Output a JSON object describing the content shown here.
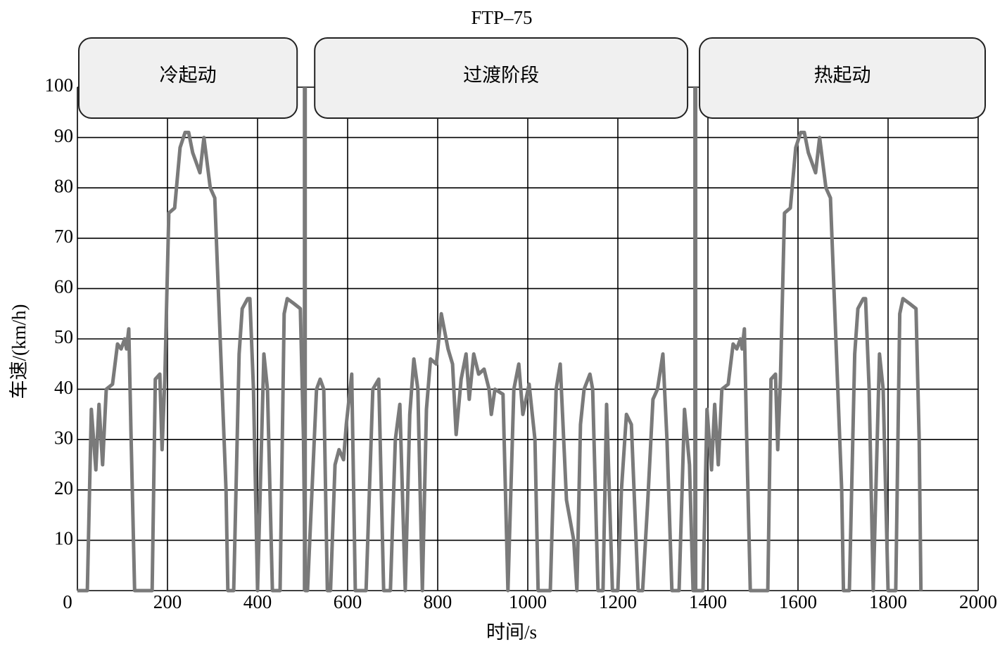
{
  "chart_data": {
    "type": "line",
    "title": "FTP–75",
    "x_label": "时间/s",
    "y_label": "车速/(km/h)",
    "color": "#7a7a7a",
    "grid": true,
    "xlim": [
      0,
      2000
    ],
    "xticks": [
      0,
      200,
      400,
      600,
      800,
      1000,
      1200,
      1400,
      1600,
      1800,
      2000
    ],
    "ylim": [
      0,
      100
    ],
    "yticks": [
      10,
      20,
      30,
      40,
      50,
      60,
      70,
      80,
      90,
      100
    ],
    "phases": [
      "冷起动",
      "过渡阶段",
      "热起动"
    ],
    "phase_boundaries": [
      505,
      1372
    ],
    "x": [
      0,
      22,
      31,
      41,
      48,
      56,
      64,
      78,
      89,
      97,
      105,
      109,
      114,
      119,
      127,
      166,
      173,
      183,
      188,
      194,
      203,
      216,
      228,
      239,
      247,
      256,
      272,
      281,
      295,
      305,
      317,
      330,
      334,
      347,
      359,
      366,
      378,
      383,
      391,
      400,
      414,
      422,
      433,
      450,
      459,
      466,
      481,
      495,
      502,
      506,
      511,
      531,
      539,
      547,
      555,
      562,
      572,
      581,
      591,
      597,
      609,
      617,
      641,
      656,
      669,
      680,
      695,
      706,
      716,
      728,
      738,
      747,
      756,
      766,
      775,
      784,
      797,
      808,
      823,
      833,
      841,
      852,
      863,
      870,
      880,
      891,
      903,
      914,
      919,
      927,
      945,
      956,
      969,
      980,
      989,
      1003,
      1016,
      1023,
      1050,
      1063,
      1072,
      1086,
      1102,
      1109,
      1117,
      1125,
      1138,
      1144,
      1156,
      1167,
      1175,
      1188,
      1200,
      1208,
      1219,
      1230,
      1245,
      1255,
      1266,
      1278,
      1288,
      1300,
      1309,
      1320,
      1336,
      1348,
      1359,
      1367,
      1372,
      1389,
      1398,
      1408,
      1415,
      1423,
      1431,
      1445,
      1456,
      1464,
      1472,
      1476,
      1481,
      1486,
      1494,
      1533,
      1540,
      1550,
      1555,
      1561,
      1570,
      1583,
      1595,
      1606,
      1614,
      1623,
      1639,
      1648,
      1662,
      1672,
      1684,
      1697,
      1701,
      1714,
      1726,
      1733,
      1745,
      1750,
      1758,
      1767,
      1781,
      1789,
      1800,
      1817,
      1826,
      1833,
      1848,
      1862,
      1869,
      1873
    ],
    "values": [
      0,
      0,
      36,
      24,
      37,
      25,
      40,
      41,
      49,
      48,
      50,
      48,
      52,
      31,
      0,
      0,
      42,
      43,
      28,
      42,
      75,
      76,
      88,
      91,
      91,
      87,
      83,
      90,
      80,
      78,
      50,
      20,
      0,
      0,
      47,
      56,
      58,
      58,
      40,
      0,
      47,
      40,
      0,
      0,
      55,
      58,
      57,
      56,
      30,
      0,
      0,
      40,
      42,
      40,
      0,
      0,
      25,
      28,
      26,
      33,
      43,
      0,
      0,
      40,
      42,
      0,
      0,
      30,
      37,
      0,
      35,
      46,
      40,
      0,
      36,
      46,
      45,
      55,
      48,
      45,
      31,
      42,
      47,
      38,
      47,
      43,
      44,
      40,
      35,
      40,
      39,
      0,
      40,
      45,
      35,
      41,
      30,
      0,
      0,
      40,
      45,
      18,
      10,
      0,
      33,
      40,
      43,
      40,
      0,
      0,
      37,
      0,
      0,
      20,
      35,
      33,
      0,
      0,
      17,
      38,
      40,
      47,
      30,
      0,
      0,
      36,
      25,
      0,
      0,
      0,
      36,
      24,
      37,
      25,
      40,
      41,
      49,
      48,
      50,
      48,
      52,
      31,
      0,
      0,
      42,
      43,
      28,
      42,
      75,
      76,
      88,
      91,
      91,
      87,
      83,
      90,
      80,
      78,
      50,
      20,
      0,
      0,
      47,
      56,
      58,
      58,
      40,
      0,
      47,
      40,
      0,
      0,
      55,
      58,
      57,
      56,
      30,
      0
    ]
  }
}
